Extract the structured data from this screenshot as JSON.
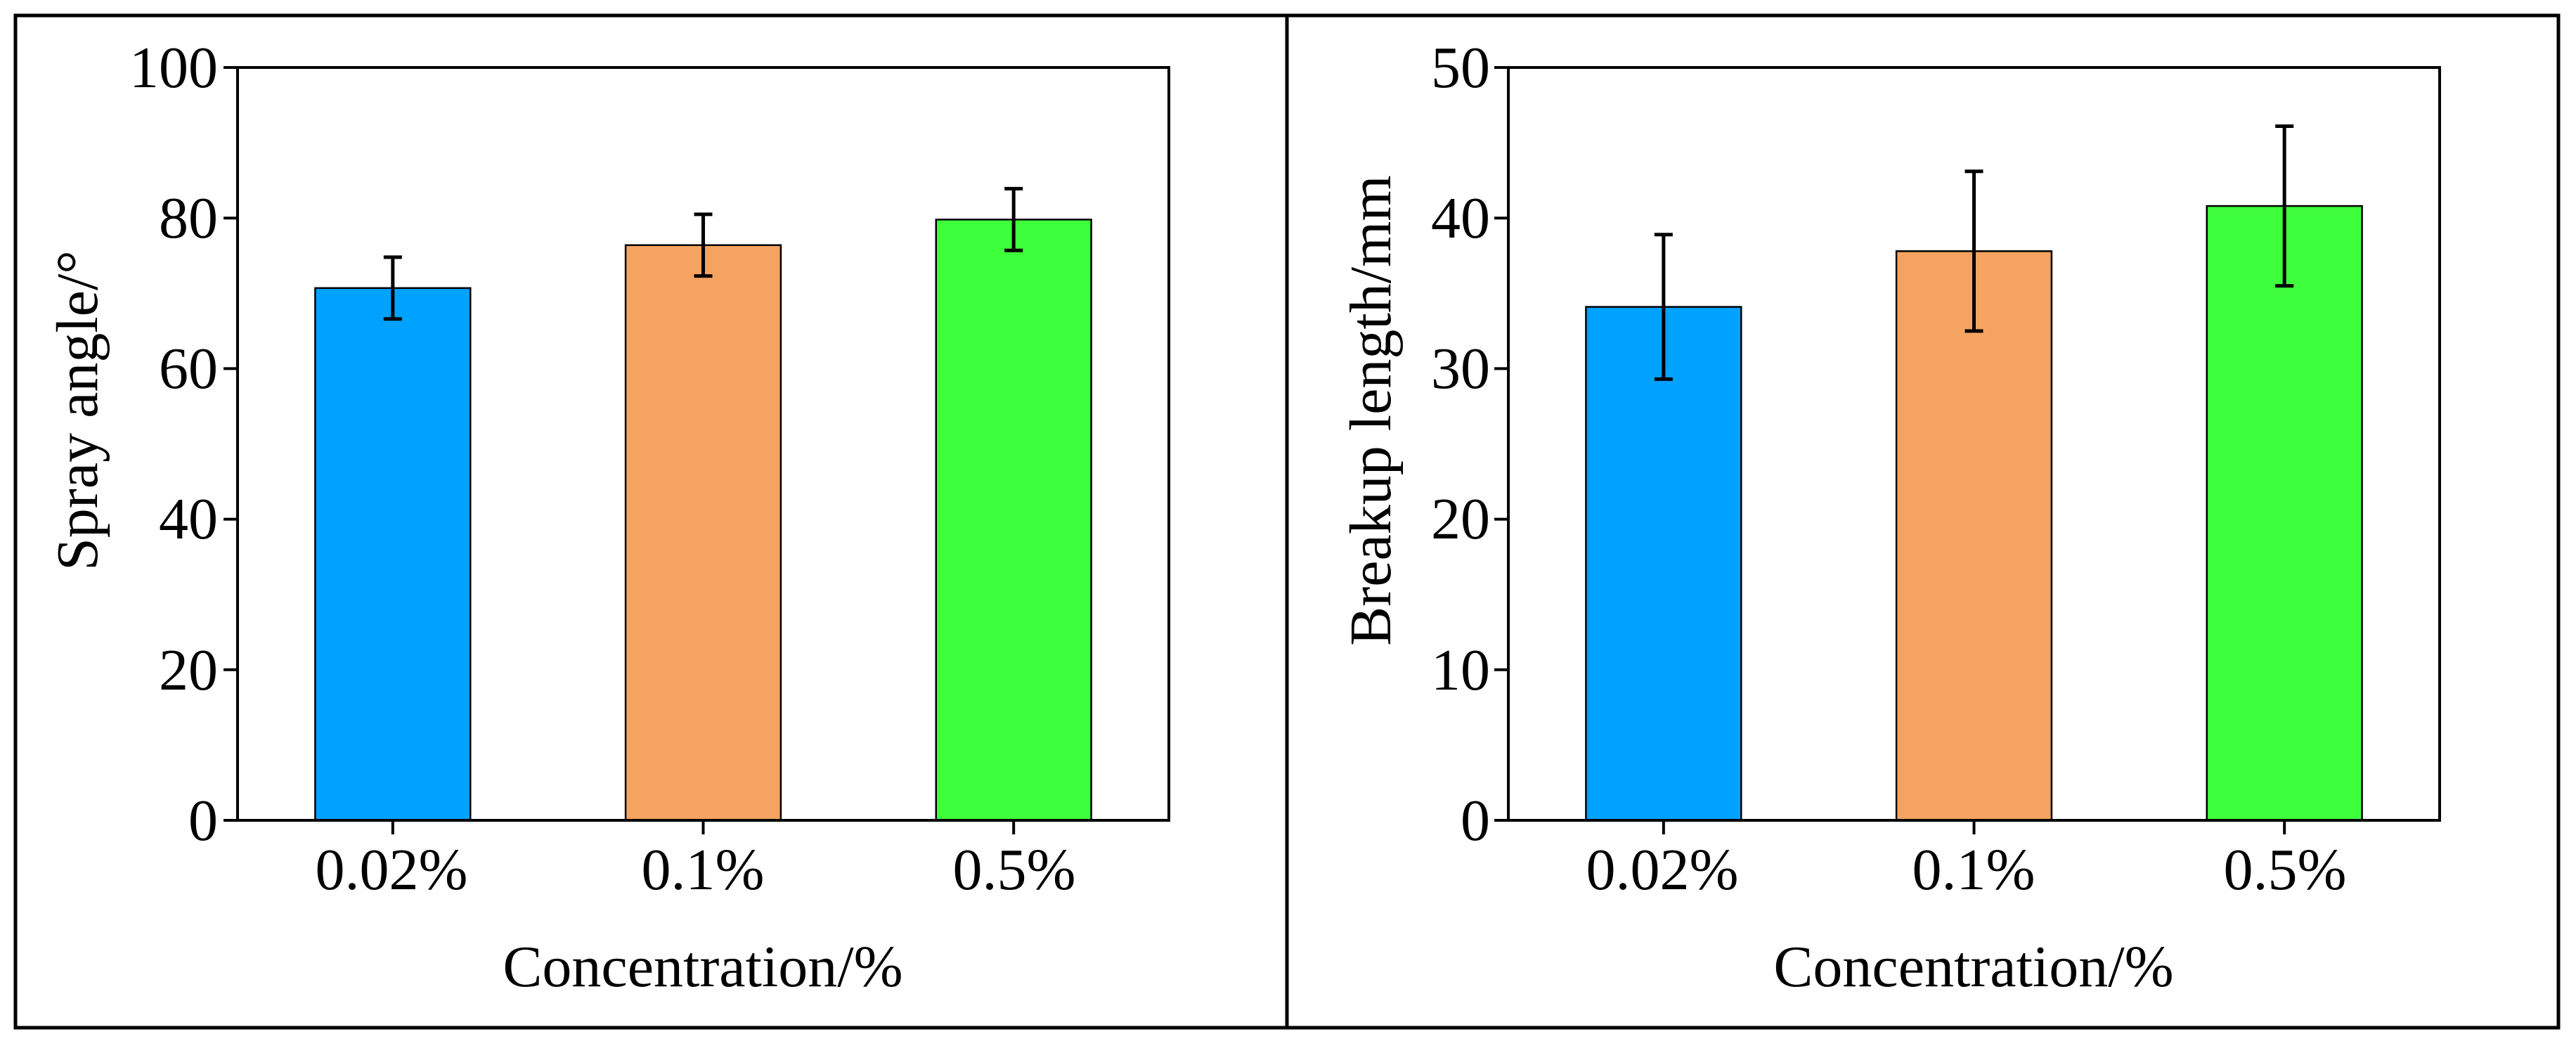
{
  "chart_data": [
    {
      "type": "bar",
      "categories": [
        "0.02%",
        "0.1%",
        "0.5%"
      ],
      "values": [
        70.7,
        76.4,
        79.8
      ],
      "errors": [
        4.1,
        4.1,
        4.1
      ],
      "bar_colors": [
        "#00A2FF",
        "#F4A460",
        "#3EFF3B"
      ],
      "xlabel": "Concentration/%",
      "ylabel": "Spray angle/°",
      "ylim": [
        0,
        100
      ],
      "yticks": [
        "0",
        "20",
        "40",
        "60",
        "80",
        "100"
      ],
      "grid": false,
      "legend": "none"
    },
    {
      "type": "bar",
      "categories": [
        "0.02%",
        "0.1%",
        "0.5%"
      ],
      "values": [
        34.1,
        37.8,
        40.8
      ],
      "errors": [
        4.8,
        5.3,
        5.3
      ],
      "bar_colors": [
        "#00A2FF",
        "#F4A460",
        "#3EFF3B"
      ],
      "xlabel": "Concentration/%",
      "ylabel": "Breakup length/mm",
      "ylim": [
        0,
        50
      ],
      "yticks": [
        "0",
        "10",
        "20",
        "30",
        "40",
        "50"
      ],
      "grid": false,
      "legend": "none"
    }
  ]
}
